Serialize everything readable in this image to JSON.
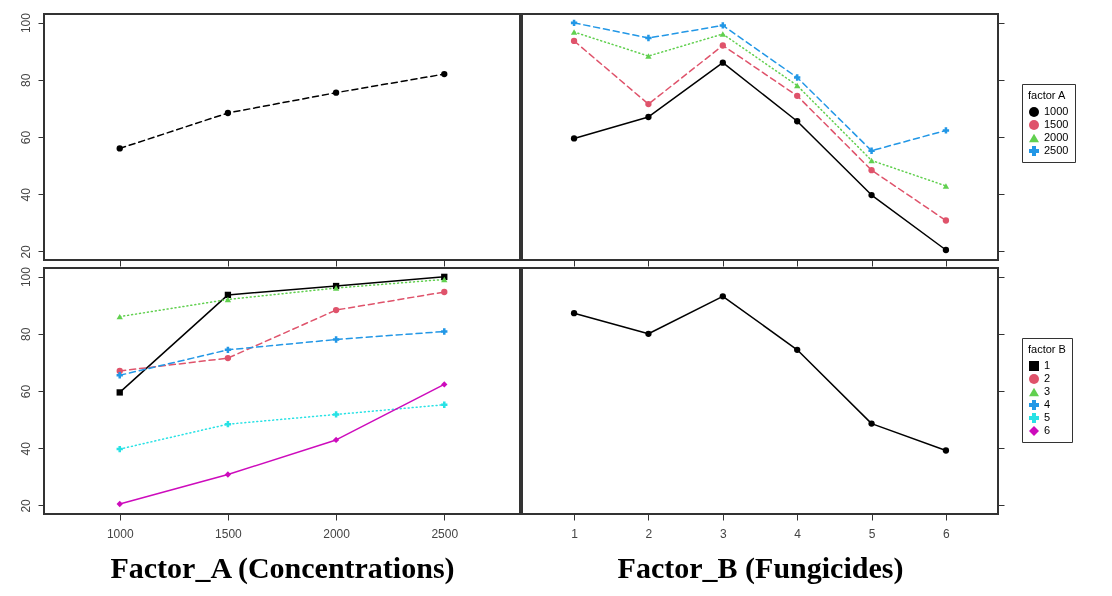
{
  "chart_data": [
    {
      "type": "line",
      "categories": [
        "1000",
        "1500",
        "2000",
        "2500"
      ],
      "series": [
        {
          "color": "#000000",
          "values": [
            56,
            68.4,
            75.5,
            82
          ],
          "line_style": "dashed",
          "marker": "circle"
        }
      ],
      "ylim": [
        17,
        103
      ],
      "yticks": [
        20,
        40,
        60,
        80,
        100
      ],
      "tick_labels": "y"
    },
    {
      "type": "line",
      "categories": [
        "1",
        "2",
        "3",
        "4",
        "5",
        "6"
      ],
      "legend": "right",
      "legend_title": "factor A",
      "series": [
        {
          "name": "1000",
          "color": "#000000",
          "values": [
            59.5,
            67,
            86,
            65.5,
            39.7,
            20.5
          ],
          "line_style": "solid",
          "marker": "circle"
        },
        {
          "name": "1500",
          "color": "#df536b",
          "values": [
            93.6,
            71.5,
            92,
            74.4,
            48.4,
            30.8
          ],
          "line_style": "dashed",
          "marker": "circle"
        },
        {
          "name": "2000",
          "color": "#61d04f",
          "values": [
            96.7,
            88.3,
            96,
            78,
            51.8,
            42.9
          ],
          "line_style": "dotted",
          "marker": "triangle"
        },
        {
          "name": "2500",
          "color": "#2297e6",
          "values": [
            99.9,
            94.6,
            99,
            80.8,
            55.2,
            62.3
          ],
          "line_style": "dashed",
          "marker": "cross"
        }
      ],
      "ylim": [
        17,
        103
      ],
      "yticks": [
        20,
        40,
        60,
        80,
        100
      ],
      "tick_labels": false
    },
    {
      "type": "line",
      "categories": [
        "1000",
        "1500",
        "2000",
        "2500"
      ],
      "xlabel": "Factor_A (Concentrations)",
      "legend": "right",
      "legend_title": "factor B",
      "series": [
        {
          "name": "1",
          "color": "#000000",
          "values": [
            59.5,
            93.6,
            96.7,
            99.9
          ],
          "line_style": "solid",
          "marker": "square"
        },
        {
          "name": "2",
          "color": "#df536b",
          "values": [
            67,
            71.5,
            88.3,
            94.6
          ],
          "line_style": "dashed",
          "marker": "circle"
        },
        {
          "name": "3",
          "color": "#61d04f",
          "values": [
            86,
            92,
            96,
            99
          ],
          "line_style": "dotted",
          "marker": "triangle"
        },
        {
          "name": "4",
          "color": "#2297e6",
          "values": [
            65.5,
            74.4,
            78,
            80.8
          ],
          "line_style": "dashed",
          "marker": "cross"
        },
        {
          "name": "5",
          "color": "#28e2e5",
          "values": [
            39.7,
            48.4,
            51.8,
            55.2
          ],
          "line_style": "dotted",
          "marker": "cross"
        },
        {
          "name": "6",
          "color": "#cd0bbc",
          "values": [
            20.5,
            30.8,
            42.9,
            62.3
          ],
          "line_style": "solid",
          "marker": "diamond"
        }
      ],
      "ylim": [
        17,
        103
      ],
      "yticks": [
        20,
        40,
        60,
        80,
        100
      ]
    },
    {
      "type": "line",
      "categories": [
        "1",
        "2",
        "3",
        "4",
        "5",
        "6"
      ],
      "xlabel": "Factor_B (Fungicides)",
      "series": [
        {
          "color": "#000000",
          "values": [
            87.2,
            80,
            93.1,
            74.4,
            48.6,
            39.2
          ],
          "line_style": "solid",
          "marker": "circle"
        }
      ],
      "ylim": [
        17,
        103
      ],
      "yticks": [
        20,
        40,
        60,
        80,
        100
      ],
      "tick_labels": "x"
    }
  ]
}
